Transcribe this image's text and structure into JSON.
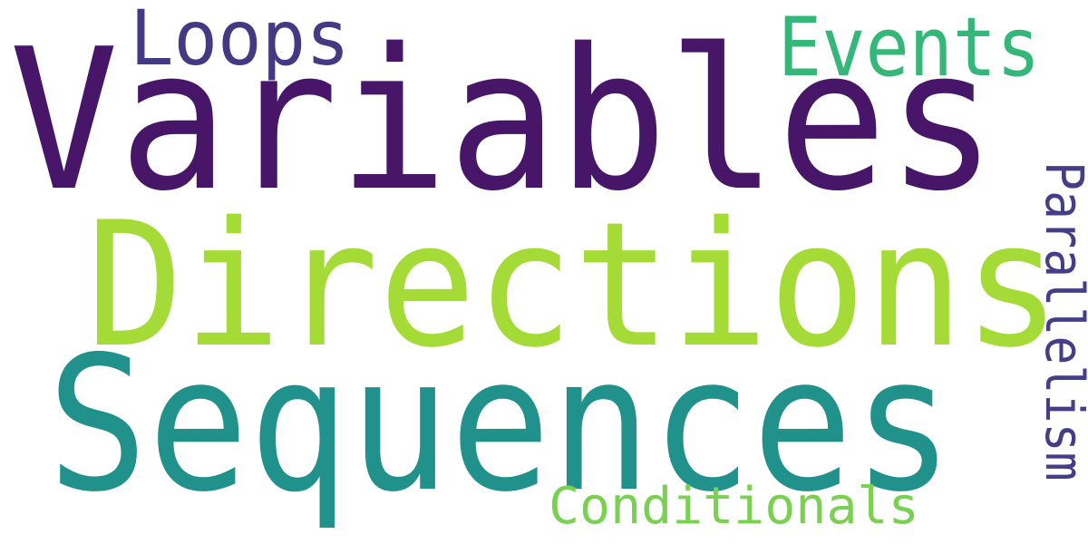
{
  "words": [
    {
      "text": "Variables",
      "color": "#471669"
    },
    {
      "text": "Directions",
      "color": "#a5db36"
    },
    {
      "text": "Sequences",
      "color": "#21918c"
    },
    {
      "text": "Loops",
      "color": "#443983"
    },
    {
      "text": "Events",
      "color": "#35b779"
    },
    {
      "text": "Conditionals",
      "color": "#7ad151"
    },
    {
      "text": "Parallelism",
      "color": "#433e85"
    }
  ]
}
